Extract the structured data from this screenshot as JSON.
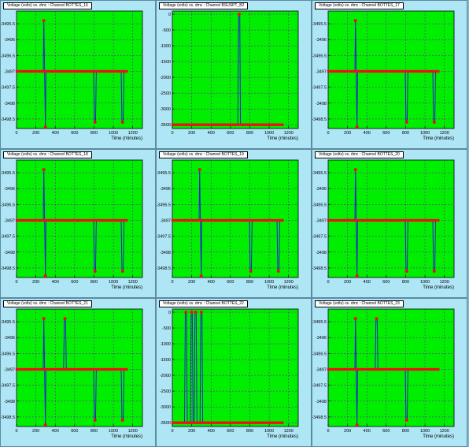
{
  "colors": {
    "panel_bg": "#aee6f6",
    "plot_bg": "#00ee00",
    "grid": "#8a00c0",
    "line": "#2222cc",
    "marker": "#ee1111"
  },
  "panels": [
    {
      "title": "Voltage (volts) vs. dmc : Channel BOTTES_16",
      "chart_data": {
        "type": "line",
        "xlabel": "Time (minutes)",
        "ylabel": "",
        "xlim": [
          0,
          1300
        ],
        "ylim": [
          -3498.8,
          -3495.1
        ],
        "xticks": [
          0,
          200,
          400,
          600,
          800,
          1000,
          1200
        ],
        "xtick_labels": [
          "0",
          "200",
          "400",
          "600",
          "800",
          "1000",
          "1200"
        ],
        "yticks": [
          -3495.5,
          -3496,
          -3496.5,
          -3497,
          -3497.5,
          -3498,
          -3498.5
        ],
        "ytick_labels": [
          "-3495.5",
          "-3496",
          "-3496.5",
          "-3497",
          "-3497.5",
          "-3498",
          "-3498.5"
        ],
        "baseline": -3497,
        "x_range": [
          0,
          1150
        ],
        "spikes": [
          {
            "x": 290,
            "peak": -3495.4,
            "trough": -3498.75
          },
          {
            "x": 810,
            "trough": -3498.6
          },
          {
            "x": 1095,
            "trough": -3498.6
          }
        ]
      }
    },
    {
      "title": "Voltage (volts) vs. dmc : Channel BSUSPT_B2",
      "chart_data": {
        "type": "line",
        "xlabel": "Time (minutes)",
        "ylabel": "",
        "xlim": [
          0,
          1300
        ],
        "ylim": [
          -3620,
          100
        ],
        "xticks": [
          0,
          200,
          400,
          600,
          800,
          1000,
          1200
        ],
        "xtick_labels": [
          "0",
          "200",
          "400",
          "600",
          "800",
          "1000",
          "1200"
        ],
        "yticks": [
          0,
          -500,
          -1000,
          -1500,
          -2000,
          -2500,
          -3000,
          -3500
        ],
        "ytick_labels": [
          "0",
          "-500",
          "-1000",
          "-1500",
          "-2000",
          "-2500",
          "-3000",
          "-3500"
        ],
        "baseline": -3500,
        "x_range": [
          0,
          1150
        ],
        "spikes": [
          {
            "x": 690,
            "peak": 0
          }
        ]
      }
    },
    {
      "title": "Voltage (volts) vs. dmc : Channel BOTTES_17",
      "chart_data": {
        "type": "line",
        "xlabel": "Time (minutes)",
        "ylabel": "",
        "xlim": [
          0,
          1300
        ],
        "ylim": [
          -3498.8,
          -3495.1
        ],
        "xticks": [
          0,
          200,
          400,
          600,
          800,
          1000,
          1200
        ],
        "xtick_labels": [
          "0",
          "200",
          "400",
          "600",
          "800",
          "1000",
          "1200"
        ],
        "yticks": [
          -3495.5,
          -3496,
          -3496.5,
          -3497,
          -3497.5,
          -3498,
          -3498.5
        ],
        "ytick_labels": [
          "-3495.5",
          "-3496",
          "-3496.5",
          "-3497",
          "-3497.5",
          "-3498",
          "-3498.5"
        ],
        "baseline": -3497,
        "x_range": [
          0,
          1150
        ],
        "spikes": [
          {
            "x": 290,
            "peak": -3495.4,
            "trough": -3498.75
          },
          {
            "x": 810,
            "trough": -3498.6
          },
          {
            "x": 1095,
            "trough": -3498.6
          }
        ]
      }
    },
    {
      "title": "Voltage (volts) vs. dmc : Channel BOTTES_18",
      "chart_data": {
        "type": "line",
        "xlabel": "Time (minutes)",
        "ylabel": "",
        "xlim": [
          0,
          1300
        ],
        "ylim": [
          -3498.8,
          -3495.1
        ],
        "xticks": [
          0,
          200,
          400,
          600,
          800,
          1000,
          1200
        ],
        "xtick_labels": [
          "0",
          "200",
          "400",
          "600",
          "800",
          "1000",
          "1200"
        ],
        "yticks": [
          -3495.5,
          -3496,
          -3496.5,
          -3497,
          -3497.5,
          -3498,
          -3498.5
        ],
        "ytick_labels": [
          "-3495.5",
          "-3496",
          "-3496.5",
          "-3497",
          "-3497.5",
          "-3498",
          "-3498.5"
        ],
        "baseline": -3497,
        "x_range": [
          0,
          1150
        ],
        "spikes": [
          {
            "x": 290,
            "peak": -3495.4,
            "trough": -3498.75
          },
          {
            "x": 810,
            "trough": -3498.6
          },
          {
            "x": 1095,
            "trough": -3498.6
          }
        ]
      }
    },
    {
      "title": "Voltage (volts) vs. dmc : Channel BOTTES_19",
      "chart_data": {
        "type": "line",
        "xlabel": "Time (minutes)",
        "ylabel": "",
        "xlim": [
          0,
          1300
        ],
        "ylim": [
          -3498.8,
          -3495.1
        ],
        "xticks": [
          0,
          200,
          400,
          600,
          800,
          1000,
          1200
        ],
        "xtick_labels": [
          "0",
          "200",
          "400",
          "600",
          "800",
          "1000",
          "1200"
        ],
        "yticks": [
          -3495.5,
          -3496,
          -3496.5,
          -3497,
          -3497.5,
          -3498,
          -3498.5
        ],
        "ytick_labels": [
          "-3495.5",
          "-3496",
          "-3496.5",
          "-3497",
          "-3497.5",
          "-3498",
          "-3498.5"
        ],
        "baseline": -3497,
        "x_range": [
          0,
          1150
        ],
        "spikes": [
          {
            "x": 290,
            "peak": -3495.4,
            "trough": -3498.75
          },
          {
            "x": 810,
            "trough": -3498.6
          },
          {
            "x": 1095,
            "trough": -3498.6
          }
        ]
      }
    },
    {
      "title": "Voltage (volts) vs. dmc : Channel BOTTES_20",
      "chart_data": {
        "type": "line",
        "xlabel": "Time (minutes)",
        "ylabel": "",
        "xlim": [
          0,
          1300
        ],
        "ylim": [
          -3498.8,
          -3495.1
        ],
        "xticks": [
          0,
          200,
          400,
          600,
          800,
          1000,
          1200
        ],
        "xtick_labels": [
          "0",
          "200",
          "400",
          "600",
          "800",
          "1000",
          "1200"
        ],
        "yticks": [
          -3495.5,
          -3496,
          -3496.5,
          -3497,
          -3497.5,
          -3498,
          -3498.5
        ],
        "ytick_labels": [
          "-3495.5",
          "-3496",
          "-3496.5",
          "-3497",
          "-3497.5",
          "-3498",
          "-3498.5"
        ],
        "baseline": -3497,
        "x_range": [
          0,
          1150
        ],
        "spikes": [
          {
            "x": 290,
            "peak": -3495.4,
            "trough": -3498.75
          },
          {
            "x": 810,
            "trough": -3498.6
          },
          {
            "x": 1095,
            "trough": -3498.6
          }
        ]
      }
    },
    {
      "title": "Voltage (volts) vs. dmc : Channel BOTTES_21",
      "chart_data": {
        "type": "line",
        "xlabel": "Time (minutes)",
        "ylabel": "",
        "xlim": [
          0,
          1300
        ],
        "ylim": [
          -3498.8,
          -3495.1
        ],
        "xticks": [
          0,
          200,
          400,
          600,
          800,
          1000,
          1200
        ],
        "xtick_labels": [
          "0",
          "200",
          "400",
          "600",
          "800",
          "1000",
          "1200"
        ],
        "yticks": [
          -3495.5,
          -3496,
          -3496.5,
          -3497,
          -3497.5,
          -3498,
          -3498.5
        ],
        "ytick_labels": [
          "-3495.5",
          "-3496",
          "-3496.5",
          "-3497",
          "-3497.5",
          "-3498",
          "-3498.5"
        ],
        "baseline": -3497,
        "x_range": [
          0,
          1150
        ],
        "spikes": [
          {
            "x": 290,
            "peak": -3495.4,
            "trough": -3498.75
          },
          {
            "x": 500,
            "peak": -3495.4
          },
          {
            "x": 810,
            "trough": -3498.6
          },
          {
            "x": 1095,
            "trough": -3498.6
          }
        ]
      }
    },
    {
      "title": "Voltage (volts) vs. dmc : Channel BOTTES_22",
      "chart_data": {
        "type": "line",
        "xlabel": "Time (minutes)",
        "ylabel": "",
        "xlim": [
          0,
          1300
        ],
        "ylim": [
          -3620,
          100
        ],
        "xticks": [
          0,
          200,
          400,
          600,
          800,
          1000,
          1200
        ],
        "xtick_labels": [
          "0",
          "200",
          "400",
          "600",
          "800",
          "1000",
          "1200"
        ],
        "yticks": [
          0,
          -500,
          -1000,
          -1500,
          -2000,
          -2500,
          -3000,
          -3500
        ],
        "ytick_labels": [
          "0",
          "-500",
          "-1000",
          "-1500",
          "-2000",
          "-2500",
          "-3000",
          "-3500"
        ],
        "baseline": -3500,
        "x_range": [
          0,
          1150
        ],
        "spikes": [
          {
            "x": 140,
            "peak": 0
          },
          {
            "x": 200,
            "peak": 0
          },
          {
            "x": 240,
            "peak": 0
          },
          {
            "x": 300,
            "peak": 0
          }
        ]
      }
    },
    {
      "title": "Voltage (volts) vs. dmc : Channel BOTTES_23",
      "chart_data": {
        "type": "line",
        "xlabel": "Time (minutes)",
        "ylabel": "",
        "xlim": [
          0,
          1300
        ],
        "ylim": [
          -3498.8,
          -3495.1
        ],
        "xticks": [
          0,
          200,
          400,
          600,
          800,
          1000,
          1200
        ],
        "xtick_labels": [
          "0",
          "200",
          "400",
          "600",
          "800",
          "1000",
          "1200"
        ],
        "yticks": [
          -3495.5,
          -3496,
          -3496.5,
          -3497,
          -3497.5,
          -3498,
          -3498.5
        ],
        "ytick_labels": [
          "-3495.5",
          "-3496",
          "-3496.5",
          "-3497",
          "-3497.5",
          "-3498",
          "-3498.5"
        ],
        "baseline": -3497,
        "x_range": [
          0,
          1150
        ],
        "spikes": [
          {
            "x": 290,
            "peak": -3495.4,
            "trough": -3498.75
          },
          {
            "x": 500,
            "peak": -3495.4
          },
          {
            "x": 810,
            "trough": -3498.6
          }
        ]
      }
    }
  ]
}
